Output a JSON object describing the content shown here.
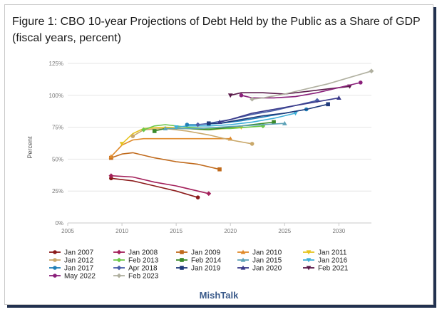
{
  "title_lines": [
    "Figure 1: CBO 10-year Projections of Debt Held by the Public as a Share of GDP",
    "(fiscal years, percent)"
  ],
  "credit": "MishTalk",
  "chart_data": {
    "type": "line",
    "ylabel": "Percent",
    "xlim": [
      2005,
      2033
    ],
    "ylim": [
      0,
      125
    ],
    "x_ticks": [
      2005,
      2010,
      2015,
      2020,
      2025,
      2030
    ],
    "y_ticks": [
      0,
      25,
      50,
      75,
      100,
      125
    ],
    "y_tick_labels": [
      "0%",
      "25%",
      "50%",
      "75%",
      "100%",
      "125%"
    ],
    "grid": "horizontal",
    "legend_position": "bottom",
    "series": [
      {
        "name": "Jan 2007",
        "color": "#8b1a1a",
        "marker": "circle",
        "x": [
          2009,
          2011,
          2013,
          2015,
          2017
        ],
        "y": [
          35,
          33,
          29,
          25,
          20
        ]
      },
      {
        "name": "Jan 2008",
        "color": "#a3205a",
        "marker": "diamond",
        "x": [
          2009,
          2011,
          2013,
          2015,
          2018
        ],
        "y": [
          37,
          36,
          32,
          29,
          23
        ]
      },
      {
        "name": "Jan 2009",
        "color": "#c06a1c",
        "marker": "square",
        "x": [
          2009,
          2010,
          2011,
          2013,
          2015,
          2017,
          2019
        ],
        "y": [
          51,
          54,
          55,
          51,
          48,
          46,
          42
        ]
      },
      {
        "name": "Jan 2010",
        "color": "#e08a2a",
        "marker": "triangle",
        "x": [
          2009,
          2010,
          2011,
          2012,
          2014,
          2016,
          2018,
          2020
        ],
        "y": [
          52,
          61,
          65,
          66,
          66,
          66,
          66,
          66
        ]
      },
      {
        "name": "Jan 2011",
        "color": "#e6c41f",
        "marker": "triangle-down",
        "x": [
          2010,
          2011,
          2012,
          2014,
          2016,
          2018,
          2021
        ],
        "y": [
          62,
          70,
          74,
          75,
          74,
          73,
          75
        ]
      },
      {
        "name": "Jan 2012",
        "color": "#c9a86a",
        "marker": "circle",
        "x": [
          2011,
          2012,
          2014,
          2016,
          2018,
          2020,
          2022
        ],
        "y": [
          68,
          73,
          74,
          72,
          69,
          65,
          62
        ]
      },
      {
        "name": "Feb 2013",
        "color": "#6cc84a",
        "marker": "diamond",
        "x": [
          2012,
          2013,
          2014,
          2016,
          2018,
          2020,
          2023
        ],
        "y": [
          73,
          76,
          77,
          75,
          74,
          74,
          76
        ]
      },
      {
        "name": "Feb 2014",
        "color": "#3a8a2a",
        "marker": "square",
        "x": [
          2013,
          2014,
          2016,
          2018,
          2020,
          2022,
          2024
        ],
        "y": [
          72,
          74,
          74,
          73,
          75,
          77,
          79
        ]
      },
      {
        "name": "Jan 2015",
        "color": "#5fa3b8",
        "marker": "triangle",
        "x": [
          2014,
          2015,
          2017,
          2019,
          2021,
          2023,
          2025
        ],
        "y": [
          74,
          74,
          74,
          75,
          76,
          77,
          78
        ]
      },
      {
        "name": "Jan 2016",
        "color": "#3fb0d8",
        "marker": "triangle-down",
        "x": [
          2015,
          2016,
          2018,
          2020,
          2022,
          2024,
          2026
        ],
        "y": [
          75,
          76,
          76,
          77,
          79,
          82,
          86
        ]
      },
      {
        "name": "Jan 2017",
        "color": "#1f7fb8",
        "marker": "circle",
        "x": [
          2016,
          2017,
          2019,
          2021,
          2023,
          2025,
          2027
        ],
        "y": [
          77,
          77,
          78,
          80,
          83,
          86,
          89
        ]
      },
      {
        "name": "Apr 2018",
        "color": "#4a5fa8",
        "marker": "diamond",
        "x": [
          2017,
          2018,
          2020,
          2022,
          2024,
          2026,
          2028
        ],
        "y": [
          77,
          78,
          81,
          85,
          88,
          92,
          96
        ]
      },
      {
        "name": "Jan 2019",
        "color": "#1f3a7a",
        "marker": "square",
        "x": [
          2018,
          2019,
          2021,
          2023,
          2025,
          2027,
          2029
        ],
        "y": [
          78,
          78,
          81,
          84,
          86,
          89,
          93
        ]
      },
      {
        "name": "Jan 2020",
        "color": "#3a3a8a",
        "marker": "triangle",
        "x": [
          2019,
          2020,
          2022,
          2024,
          2026,
          2028,
          2030
        ],
        "y": [
          79,
          81,
          86,
          89,
          92,
          95,
          98
        ]
      },
      {
        "name": "Feb 2021",
        "color": "#5a1a4a",
        "marker": "triangle-down",
        "x": [
          2020,
          2021,
          2023,
          2025,
          2027,
          2029,
          2031
        ],
        "y": [
          100,
          102,
          102,
          101,
          103,
          105,
          107
        ]
      },
      {
        "name": "May 2022",
        "color": "#8a1f7a",
        "marker": "circle",
        "x": [
          2021,
          2022,
          2024,
          2026,
          2028,
          2030,
          2032
        ],
        "y": [
          100,
          98,
          98,
          99,
          102,
          106,
          110
        ]
      },
      {
        "name": "Feb 2023",
        "color": "#b0b0a0",
        "marker": "diamond",
        "x": [
          2022,
          2023,
          2025,
          2027,
          2029,
          2031,
          2033
        ],
        "y": [
          97,
          98,
          101,
          105,
          109,
          114,
          119
        ]
      }
    ]
  }
}
